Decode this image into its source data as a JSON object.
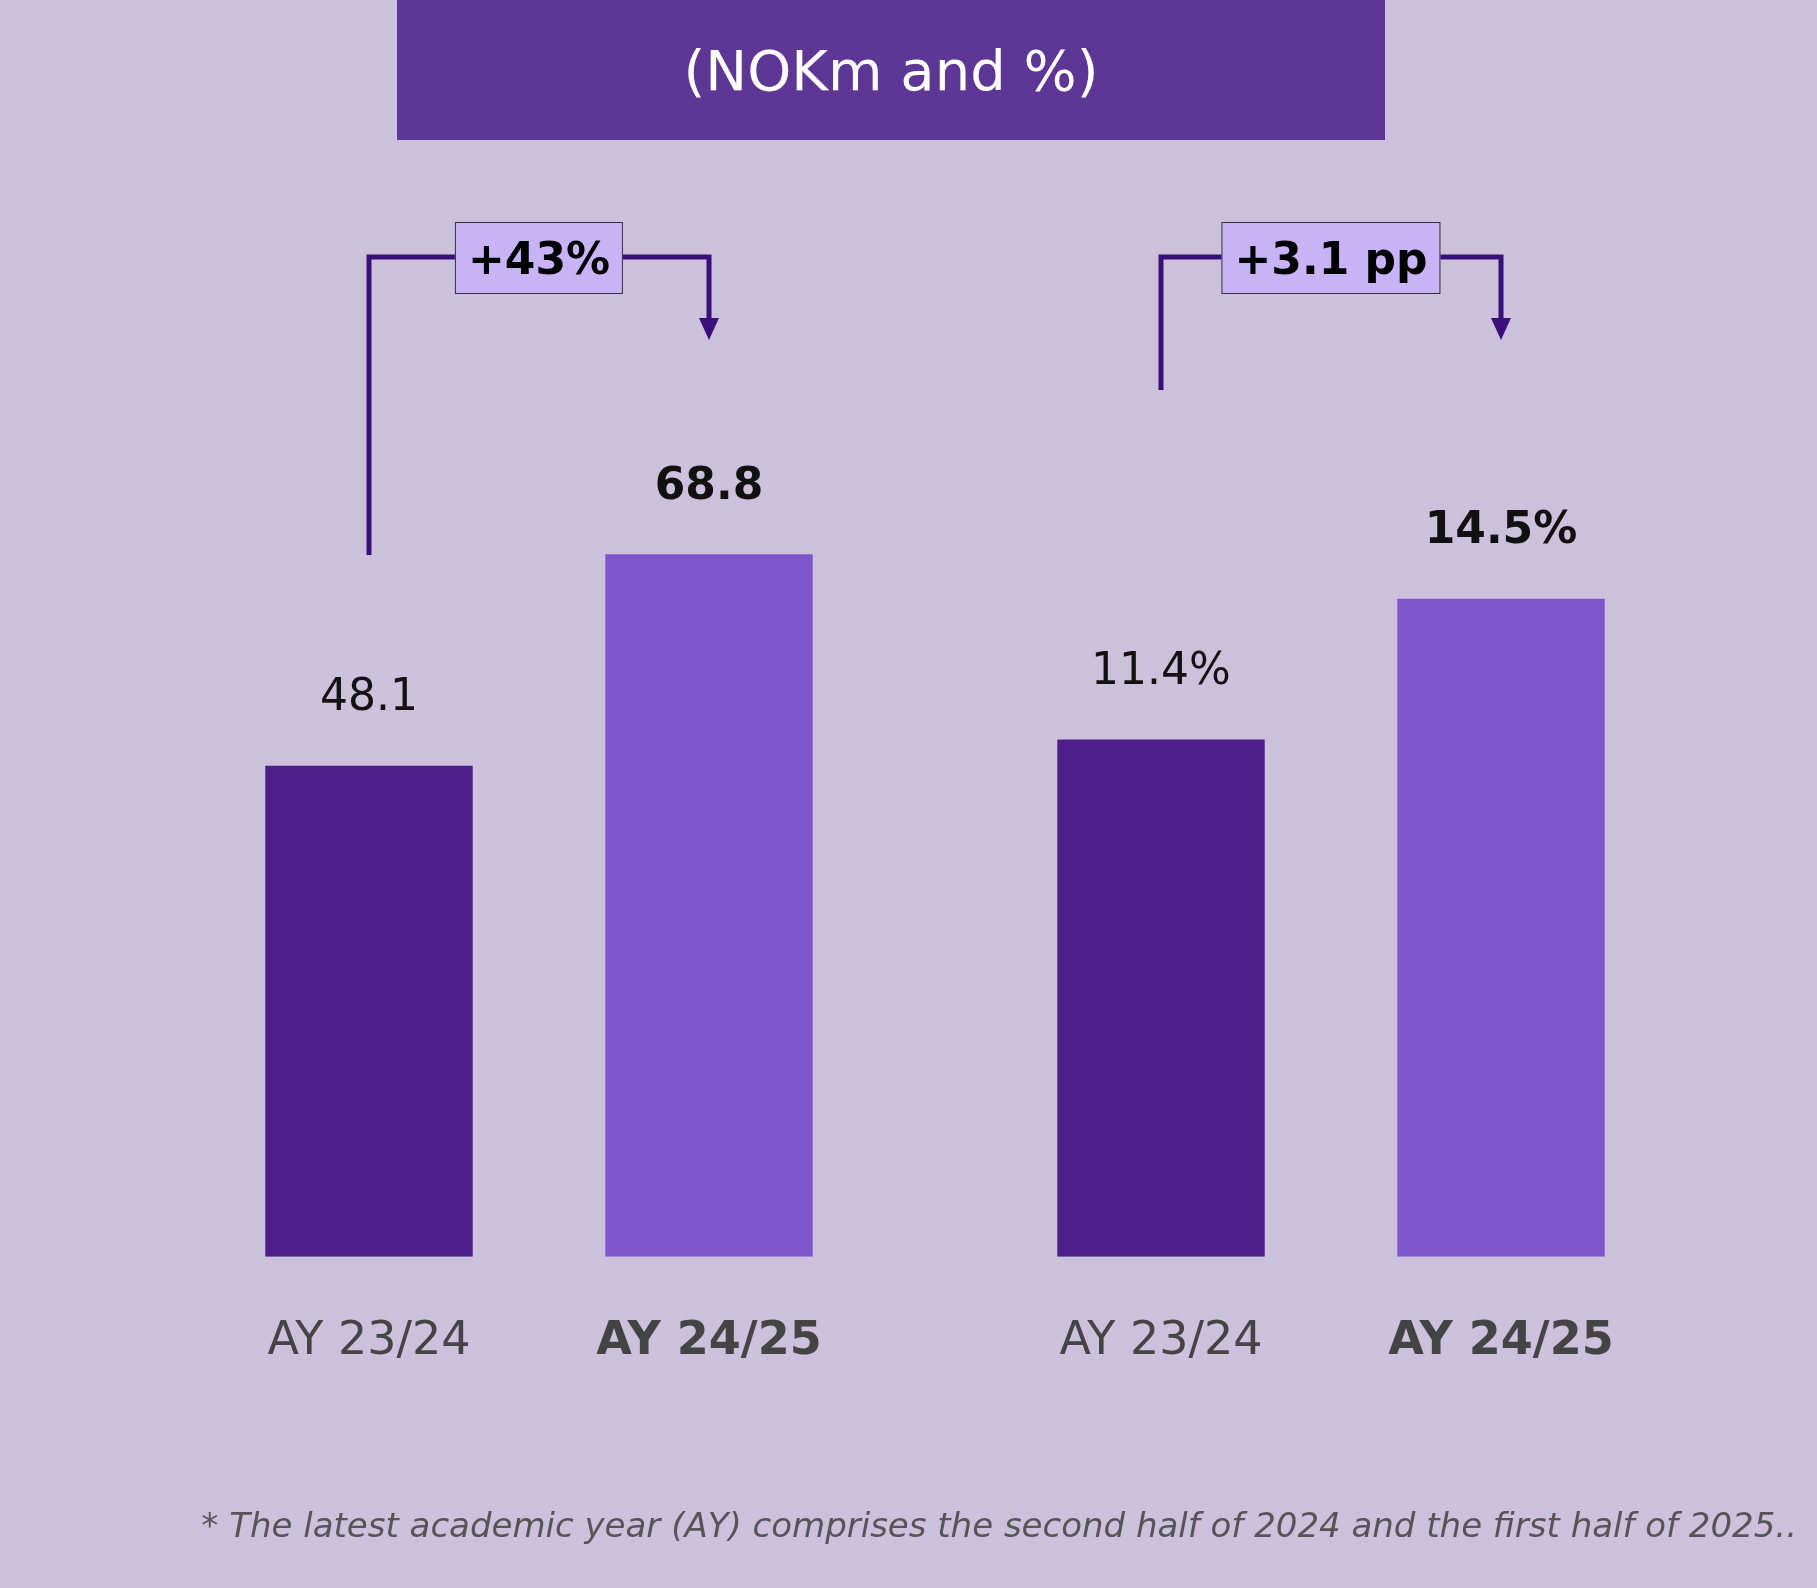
{
  "chart_data": [
    {
      "type": "bar",
      "title": "(NOKm and %)",
      "categories": [
        "AY 23/24",
        "AY 24/25"
      ],
      "values": [
        48.1,
        68.8
      ],
      "colors": [
        "#4e1e8a",
        "#7f55cc"
      ],
      "data_labels": true,
      "annotations": [
        "+43%"
      ]
    },
    {
      "type": "bar",
      "categories": [
        "AY 23/24",
        "AY 24/25"
      ],
      "values": [
        11.4,
        14.5
      ],
      "colors": [
        "#4e1e8a",
        "#7f55cc"
      ],
      "value_labels": [
        "11.4%",
        "14.5%"
      ],
      "annotations": [
        "+3.1 pp",
        "* The latest academic year (AY) comprises the second half of 2024 and the first half of 2025.."
      ]
    }
  ]
}
